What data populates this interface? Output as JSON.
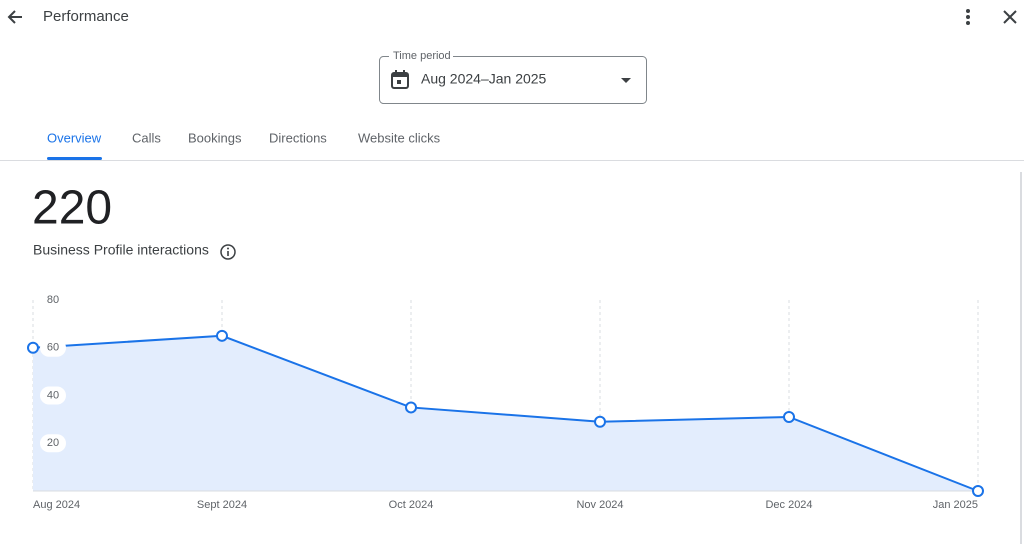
{
  "header": {
    "title": "Performance"
  },
  "time_period": {
    "label": "Time period",
    "value": "Aug 2024–Jan 2025"
  },
  "tabs": [
    "Overview",
    "Calls",
    "Bookings",
    "Directions",
    "Website clicks"
  ],
  "summary": {
    "total": 220,
    "label": "Business Profile interactions"
  },
  "chart_data": {
    "type": "area",
    "categories": [
      "Aug 2024",
      "Sept 2024",
      "Oct 2024",
      "Nov 2024",
      "Dec 2024",
      "Jan 2025"
    ],
    "values": [
      60,
      65,
      35,
      29,
      31,
      0
    ],
    "color": "#1a73e8",
    "fill_color": "#e3edfd",
    "ylim": [
      0,
      80
    ],
    "yticks": [
      20,
      40,
      60,
      80
    ],
    "grid": true
  }
}
